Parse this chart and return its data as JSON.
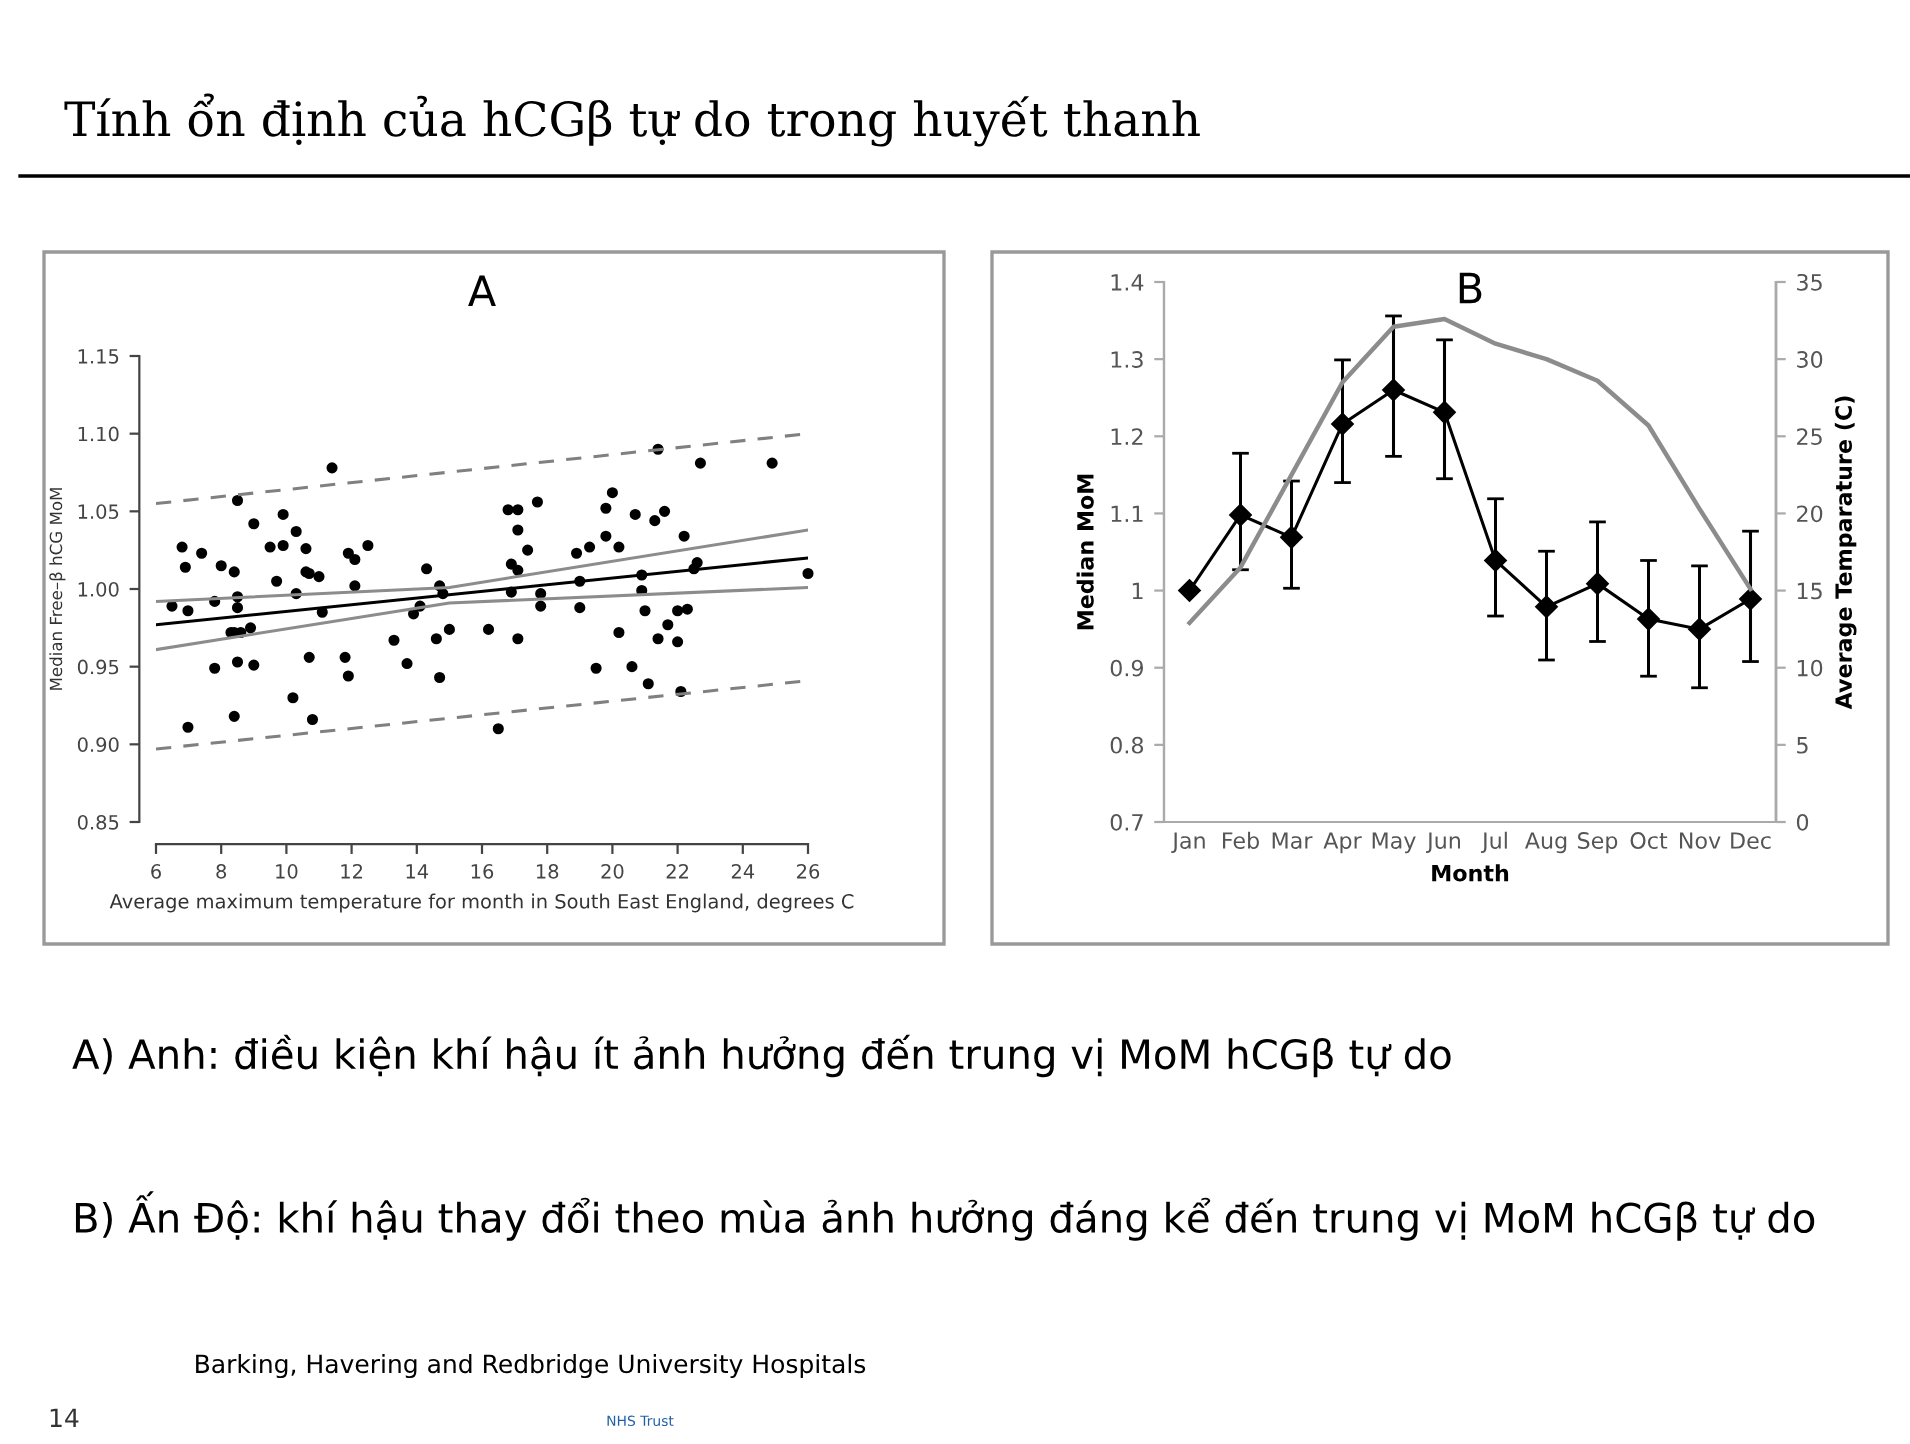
{
  "chart_data": [
    {
      "type": "scatter",
      "title": "A",
      "xlabel": "Average maximum temperature for month in South East England, degrees C",
      "ylabel": "Median Free–β hCG MoM",
      "xlim": [
        6,
        26
      ],
      "xticks": [
        6,
        8,
        10,
        12,
        14,
        16,
        18,
        20,
        22,
        24,
        26
      ],
      "ylim": [
        0.85,
        1.15
      ],
      "yticks": [
        {
          "value": 0.85,
          "label": "0.85"
        },
        {
          "value": 0.9,
          "label": "0.90"
        },
        {
          "value": 0.95,
          "label": "0.95"
        },
        {
          "value": 1.0,
          "label": "1.00"
        },
        {
          "value": 1.05,
          "label": "1.05"
        },
        {
          "value": 1.1,
          "label": "1.10"
        },
        {
          "value": 1.15,
          "label": "1.15"
        }
      ],
      "grid": false,
      "legend": false,
      "annotations": [
        "Tính ổn định của hCGβ tự do trong huyết thanh",
        "A) Anh: điều kiện khí hậu ít ảnh hưởng đến trung vị MoM hCGβ tự do"
      ],
      "series": [
        {
          "marker": "circle",
          "color": "#000000",
          "x": [
            6.49,
            6.98,
            7.8,
            8.5,
            11.1,
            14.1,
            17.8,
            19.0,
            21.0,
            22.0,
            22.3,
            8.3,
            8.4,
            8.6,
            8.9,
            7.8,
            8.5,
            9.0,
            6.98,
            8.4,
            10.7,
            10.2,
            10.8,
            11.8,
            11.9,
            13.3,
            13.7,
            13.9,
            14.6,
            14.7,
            15.0,
            16.2,
            16.5,
            17.1,
            19.5,
            20.2,
            20.6,
            21.1,
            21.4,
            21.7,
            22.0,
            22.1,
            6.8,
            6.9,
            7.4,
            8.0,
            8.4,
            8.5,
            9.0,
            9.5,
            9.9,
            9.9,
            9.7,
            10.3,
            10.6,
            10.6,
            10.7,
            11.0,
            11.4,
            11.9,
            12.1,
            12.1,
            12.5,
            14.3,
            8.5,
            10.3,
            14.7,
            14.8,
            16.8,
            17.1,
            17.7,
            17.1,
            17.4,
            16.9,
            17.1,
            16.9,
            17.8,
            19.0,
            18.9,
            19.3,
            19.8,
            19.8,
            20.0,
            20.2,
            20.7,
            21.3,
            21.6,
            21.4,
            20.9,
            20.9,
            22.2,
            22.7,
            24.9,
            22.6,
            22.5,
            26.0
          ],
          "values": [
            0.989,
            0.986,
            0.992,
            0.988,
            0.985,
            0.989,
            0.989,
            0.988,
            0.986,
            0.986,
            0.987,
            0.972,
            0.972,
            0.972,
            0.975,
            0.949,
            0.953,
            0.951,
            0.911,
            0.918,
            0.956,
            0.93,
            0.916,
            0.956,
            0.944,
            0.967,
            0.952,
            0.984,
            0.968,
            0.943,
            0.974,
            0.974,
            0.91,
            0.968,
            0.949,
            0.972,
            0.95,
            0.939,
            0.968,
            0.977,
            0.966,
            0.934,
            1.027,
            1.014,
            1.023,
            1.015,
            1.011,
            1.057,
            1.042,
            1.027,
            1.048,
            1.028,
            1.005,
            1.037,
            1.026,
            1.011,
            1.01,
            1.008,
            1.078,
            1.023,
            1.019,
            1.002,
            1.028,
            1.013,
            0.995,
            0.997,
            1.002,
            0.997,
            1.051,
            1.051,
            1.056,
            1.038,
            1.025,
            1.016,
            1.012,
            0.998,
            0.997,
            1.005,
            1.023,
            1.027,
            1.034,
            1.052,
            1.062,
            1.027,
            1.048,
            1.044,
            1.05,
            1.09,
            1.009,
            0.999,
            1.034,
            1.081,
            1.081,
            1.017,
            1.013,
            1.01
          ]
        },
        {
          "type": "line",
          "line_style": "solid",
          "color": "#000000",
          "x": [
            6,
            26
          ],
          "values": [
            0.977,
            1.02
          ]
        },
        {
          "type": "line",
          "line_style": "solid",
          "color": "#8c8c8c",
          "x": [
            6,
            15,
            26
          ],
          "values": [
            0.992,
            1.001,
            1.038
          ]
        },
        {
          "type": "line",
          "line_style": "solid",
          "color": "#8c8c8c",
          "x": [
            6,
            15,
            26
          ],
          "values": [
            0.961,
            0.991,
            1.001
          ]
        },
        {
          "type": "line",
          "line_style": "dashed",
          "color": "#808080",
          "x": [
            6,
            26
          ],
          "values": [
            1.055,
            1.1
          ]
        },
        {
          "type": "line",
          "line_style": "dashed",
          "color": "#808080",
          "x": [
            6,
            26
          ],
          "values": [
            0.897,
            0.941
          ]
        }
      ]
    },
    {
      "type": "line",
      "title": "B",
      "xlabel": "Month",
      "ylabel": "Median MoM",
      "y2label": "Average Temparature (C)",
      "categories": [
        "Jan",
        "Feb",
        "Mar",
        "Apr",
        "May",
        "Jun",
        "Jul",
        "Aug",
        "Sep",
        "Oct",
        "Nov",
        "Dec"
      ],
      "ylim": [
        0.7,
        1.4
      ],
      "yticks": [
        0.7,
        0.8,
        0.9,
        1,
        1.1,
        1.2,
        1.3,
        1.4
      ],
      "y2lim": [
        0,
        35
      ],
      "y2ticks": [
        0,
        5,
        10,
        15,
        20,
        25,
        30,
        35
      ],
      "grid": false,
      "legend": false,
      "annotations": [
        "B) Ấn Độ: khí hậu thay đổi theo mùa ảnh hưởng đáng kể đến trung vị MoM hCGβ tự do",
        "Barking, Havering and Redbridge University Hospitals",
        "NHS Trust",
        "14"
      ],
      "series": [
        {
          "marker": "diamond",
          "line_style": "solid",
          "color": "#000000",
          "values": [
            1.0,
            1.098,
            1.069,
            1.216,
            1.26,
            1.231,
            1.039,
            0.979,
            1.009,
            0.963,
            0.95,
            0.989
          ],
          "errors": [
            null,
            [
              1.027,
              1.178
            ],
            [
              1.003,
              1.142
            ],
            [
              1.14,
              1.299
            ],
            [
              1.174,
              1.356
            ],
            [
              1.145,
              1.325
            ],
            [
              0.967,
              1.119
            ],
            [
              0.91,
              1.051
            ],
            [
              0.934,
              1.089
            ],
            [
              0.889,
              1.039
            ],
            [
              0.874,
              1.032
            ],
            [
              0.908,
              1.077
            ]
          ]
        },
        {
          "axis": "y2",
          "marker": "none",
          "line_style": "solid",
          "color": "#8c8c8c",
          "values": [
            12.9,
            16.5,
            22.5,
            28.5,
            32.1,
            32.6,
            31.0,
            30.0,
            28.6,
            25.7,
            20.3,
            15.1
          ]
        }
      ]
    }
  ]
}
